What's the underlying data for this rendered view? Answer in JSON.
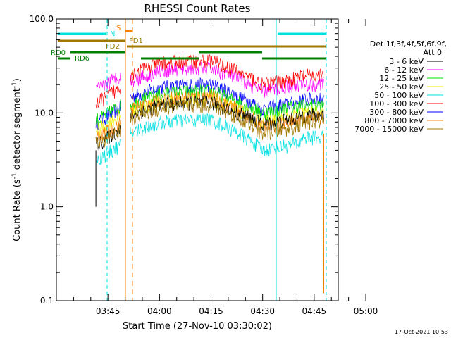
{
  "chart_data": {
    "type": "line",
    "title": "RHESSI Count Rates",
    "xlabel": "Start Time (27-Nov-10 03:30:02)",
    "ylabel_main": "Count Rate (s",
    "ylabel_sup1": "-1",
    "ylabel_mid": " detector segment",
    "ylabel_sup2": "-1",
    "ylabel_end": ")",
    "yscale": "log",
    "ylim": [
      0.1,
      100
    ],
    "xlim_min": [
      30,
      112
    ],
    "x_ticks": [
      {
        "label": "03:45",
        "min": 45
      },
      {
        "label": "04:00",
        "min": 60
      },
      {
        "label": "04:15",
        "min": 75
      },
      {
        "label": "04:30",
        "min": 90
      },
      {
        "label": "04:45",
        "min": 105
      },
      {
        "label": "05:00",
        "min": 120
      }
    ],
    "y_ticks": [
      {
        "label": "0.1",
        "v": 0.1
      },
      {
        "label": "1.0",
        "v": 1.0
      },
      {
        "label": "10.0",
        "v": 10.0
      },
      {
        "label": "100.0",
        "v": 100.0
      }
    ],
    "legend_title": "Det 1f,3f,4f,5f,6f,9f,",
    "legend_att": "Att 0",
    "series": [
      {
        "name": "3 - 6 keV",
        "color": "#000000",
        "base": 5.0,
        "peak": 13.0,
        "dip": 7.5,
        "end": 9.5
      },
      {
        "name": "6 - 12 keV",
        "color": "#ff00ff",
        "base": 19.0,
        "peak": 30.0,
        "dip": 17.0,
        "end": 20.0
      },
      {
        "name": "12 - 25 keV",
        "color": "#00e000",
        "base": 9.0,
        "peak": 17.0,
        "dip": 10.0,
        "end": 12.0
      },
      {
        "name": "25 - 50 keV",
        "color": "#f0f000",
        "base": 7.0,
        "peak": 14.0,
        "dip": 8.0,
        "end": 10.0
      },
      {
        "name": "50 - 100 keV",
        "color": "#00e0e0",
        "base": 3.4,
        "peak": 8.5,
        "dip": 4.0,
        "end": 5.5
      },
      {
        "name": "100 - 300 keV",
        "color": "#ff0000",
        "base": 14.0,
        "peak": 36.0,
        "dip": 20.0,
        "end": 25.0
      },
      {
        "name": "300 - 800 keV",
        "color": "#0000ff",
        "base": 8.5,
        "peak": 20.0,
        "dip": 11.0,
        "end": 14.0
      },
      {
        "name": "800 - 7000 keV",
        "color": "#ff8000",
        "base": 5.8,
        "peak": 15.0,
        "dip": 7.0,
        "end": 9.0
      },
      {
        "name": "7000 - 15000 keV",
        "color": "#a07800",
        "base": 5.0,
        "peak": 12.0,
        "dip": 6.0,
        "end": 8.0
      }
    ],
    "flag_labels": {
      "n": "N",
      "s": "S",
      "fd1": "FD1",
      "fd2": "FD2",
      "rd0": "RD0",
      "rd6": "RD6"
    },
    "timestamp": "17-Oct-2021 10:53"
  }
}
